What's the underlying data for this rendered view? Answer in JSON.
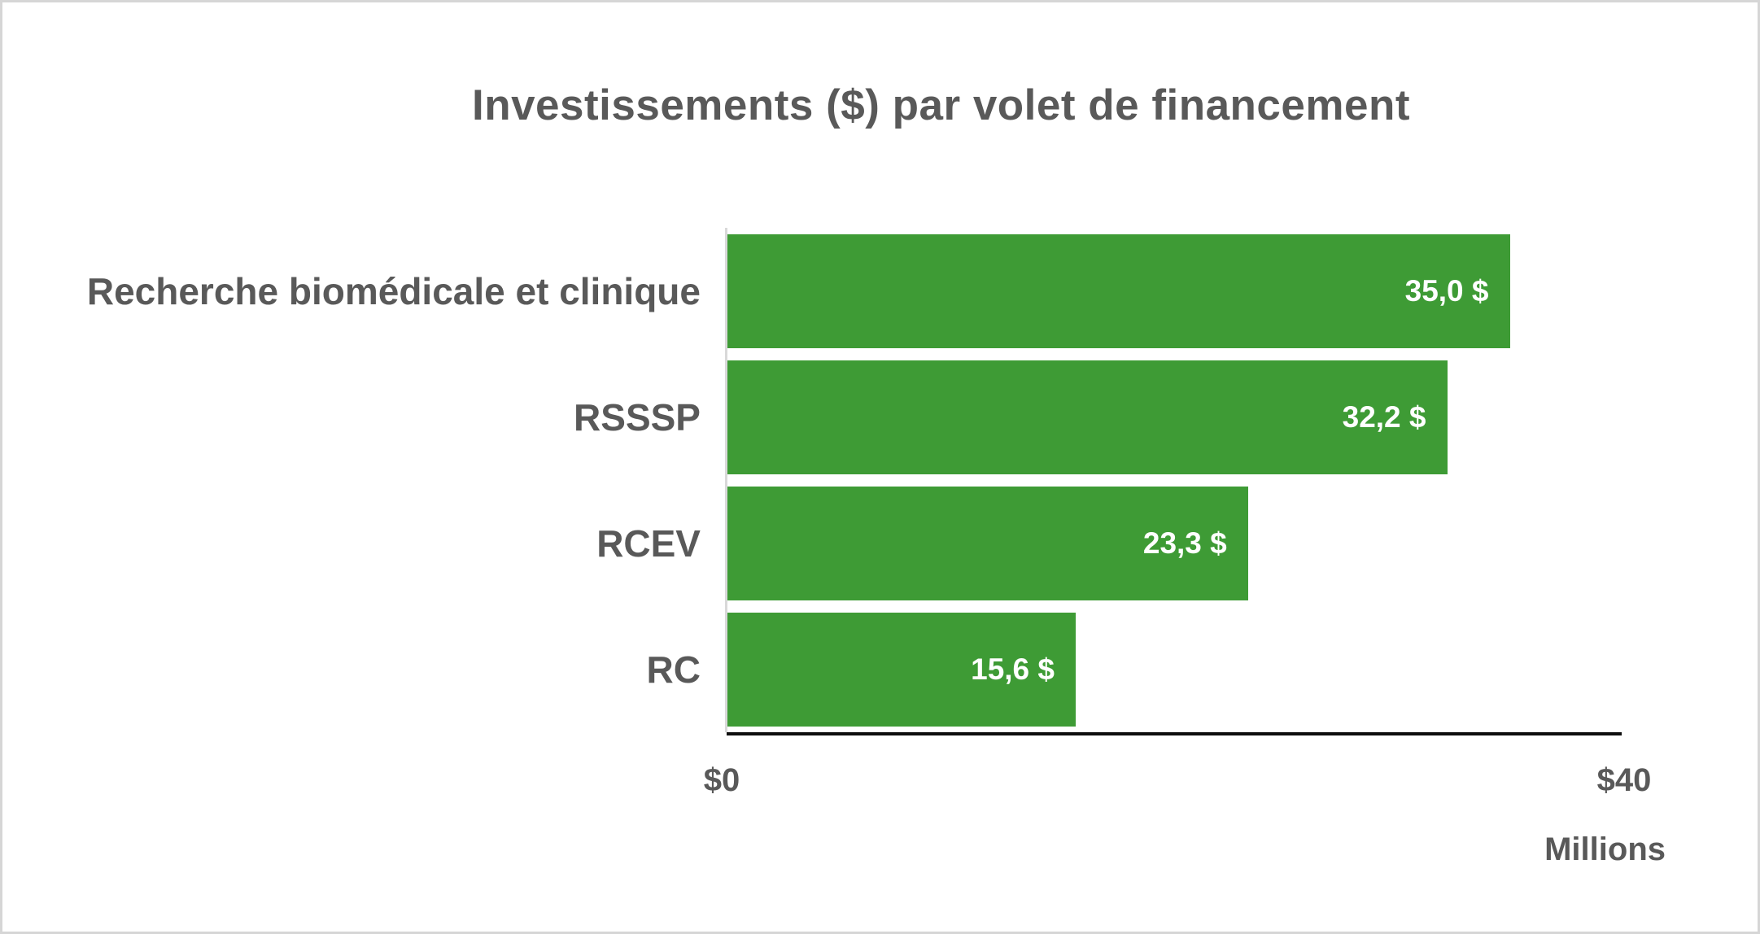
{
  "page": {
    "background_color": "#ffffff",
    "border_color": "#d6d6d6"
  },
  "chart_data": {
    "type": "bar",
    "orientation": "horizontal",
    "title": "Investissements ($) par volet de financement",
    "categories": [
      "Recherche biomédicale et clinique",
      "RSSSP",
      "RCEV",
      "RC"
    ],
    "values": [
      35.0,
      32.2,
      23.3,
      15.6
    ],
    "value_labels": [
      "35,0 $",
      "32,2 $",
      "23,3 $",
      "15,6 $"
    ],
    "xlim": [
      0,
      40
    ],
    "x_tick_labels": [
      "$0",
      "$40"
    ],
    "axis_unit_label": "Millions",
    "bar_color": "#3e9b35",
    "value_label_color": "#ffffff",
    "text_color": "#595959",
    "axis_line_color": "#0d0d0d",
    "baseline_color": "#d9d9d9",
    "grid": false,
    "legend": false
  }
}
